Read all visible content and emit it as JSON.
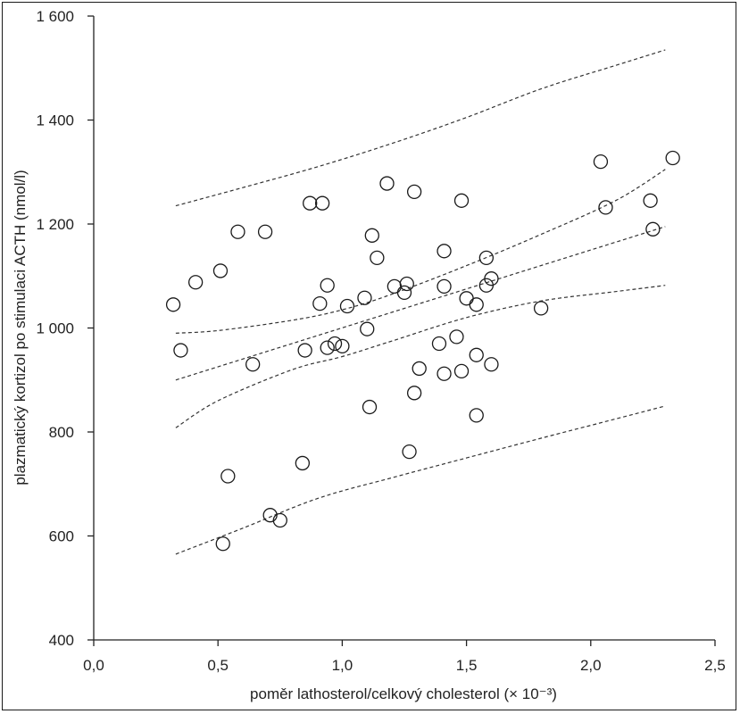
{
  "chart_data": {
    "type": "scatter",
    "title": "",
    "xlabel": "poměr lathosterol/celkový cholesterol (× 10⁻³)",
    "ylabel": "plazmatický kortizol po stimulaci ACTH (nmol/l)",
    "xlim": [
      0.0,
      2.5
    ],
    "ylim": [
      400,
      1600
    ],
    "grid": false,
    "legend": "none",
    "x_ticks": [
      0.0,
      0.5,
      1.0,
      1.5,
      2.0,
      2.5
    ],
    "x_tick_labels": [
      "0,0",
      "0,5",
      "1,0",
      "1,5",
      "2,0",
      "2,5"
    ],
    "y_ticks": [
      400,
      600,
      800,
      1000,
      1200,
      1400,
      1600
    ],
    "y_tick_labels": [
      "400",
      "600",
      "800",
      "1 000",
      "1 200",
      "1 400",
      "1 600"
    ],
    "marker_color": "#1a1a1a",
    "points": [
      {
        "x": 0.32,
        "y": 1045
      },
      {
        "x": 0.35,
        "y": 957
      },
      {
        "x": 0.41,
        "y": 1088
      },
      {
        "x": 0.51,
        "y": 1110
      },
      {
        "x": 0.52,
        "y": 585
      },
      {
        "x": 0.54,
        "y": 715
      },
      {
        "x": 0.58,
        "y": 1185
      },
      {
        "x": 0.64,
        "y": 930
      },
      {
        "x": 0.69,
        "y": 1185
      },
      {
        "x": 0.71,
        "y": 640
      },
      {
        "x": 0.75,
        "y": 630
      },
      {
        "x": 0.84,
        "y": 740
      },
      {
        "x": 0.85,
        "y": 957
      },
      {
        "x": 0.87,
        "y": 1240
      },
      {
        "x": 0.91,
        "y": 1047
      },
      {
        "x": 0.92,
        "y": 1240
      },
      {
        "x": 0.94,
        "y": 1082
      },
      {
        "x": 0.94,
        "y": 962
      },
      {
        "x": 0.97,
        "y": 970
      },
      {
        "x": 1.0,
        "y": 965
      },
      {
        "x": 1.02,
        "y": 1042
      },
      {
        "x": 1.09,
        "y": 1058
      },
      {
        "x": 1.1,
        "y": 998
      },
      {
        "x": 1.11,
        "y": 848
      },
      {
        "x": 1.12,
        "y": 1178
      },
      {
        "x": 1.14,
        "y": 1135
      },
      {
        "x": 1.18,
        "y": 1278
      },
      {
        "x": 1.21,
        "y": 1080
      },
      {
        "x": 1.25,
        "y": 1068
      },
      {
        "x": 1.26,
        "y": 1085
      },
      {
        "x": 1.27,
        "y": 762
      },
      {
        "x": 1.29,
        "y": 875
      },
      {
        "x": 1.29,
        "y": 1262
      },
      {
        "x": 1.31,
        "y": 922
      },
      {
        "x": 1.39,
        "y": 970
      },
      {
        "x": 1.41,
        "y": 912
      },
      {
        "x": 1.41,
        "y": 1148
      },
      {
        "x": 1.41,
        "y": 1080
      },
      {
        "x": 1.46,
        "y": 983
      },
      {
        "x": 1.48,
        "y": 917
      },
      {
        "x": 1.48,
        "y": 1245
      },
      {
        "x": 1.5,
        "y": 1057
      },
      {
        "x": 1.54,
        "y": 832
      },
      {
        "x": 1.54,
        "y": 948
      },
      {
        "x": 1.54,
        "y": 1045
      },
      {
        "x": 1.58,
        "y": 1082
      },
      {
        "x": 1.58,
        "y": 1135
      },
      {
        "x": 1.6,
        "y": 930
      },
      {
        "x": 1.6,
        "y": 1095
      },
      {
        "x": 1.8,
        "y": 1038
      },
      {
        "x": 2.04,
        "y": 1320
      },
      {
        "x": 2.06,
        "y": 1232
      },
      {
        "x": 2.24,
        "y": 1245
      },
      {
        "x": 2.25,
        "y": 1190
      },
      {
        "x": 2.33,
        "y": 1327
      }
    ],
    "regression_line": {
      "x": [
        0.33,
        2.3
      ],
      "y": [
        900,
        1195
      ]
    },
    "confidence_band": {
      "upper": {
        "x": [
          0.33,
          0.5,
          0.8,
          1.0,
          1.2,
          1.5,
          1.8,
          2.1,
          2.3
        ],
        "y": [
          990,
          995,
          1015,
          1035,
          1065,
          1120,
          1180,
          1245,
          1305
        ]
      },
      "lower": {
        "x": [
          0.33,
          0.5,
          0.8,
          1.0,
          1.2,
          1.5,
          1.8,
          2.1,
          2.3
        ],
        "y": [
          808,
          860,
          920,
          945,
          975,
          1020,
          1052,
          1070,
          1082
        ]
      }
    },
    "prediction_band": {
      "upper": {
        "x": [
          0.33,
          0.6,
          0.9,
          1.2,
          1.5,
          1.8,
          2.1,
          2.3
        ],
        "y": [
          1235,
          1270,
          1310,
          1355,
          1405,
          1460,
          1505,
          1535
        ]
      },
      "lower": {
        "x": [
          0.33,
          0.6,
          0.9,
          1.2,
          1.5,
          1.8,
          2.1,
          2.3
        ],
        "y": [
          565,
          615,
          672,
          712,
          750,
          788,
          825,
          850
        ]
      }
    }
  }
}
